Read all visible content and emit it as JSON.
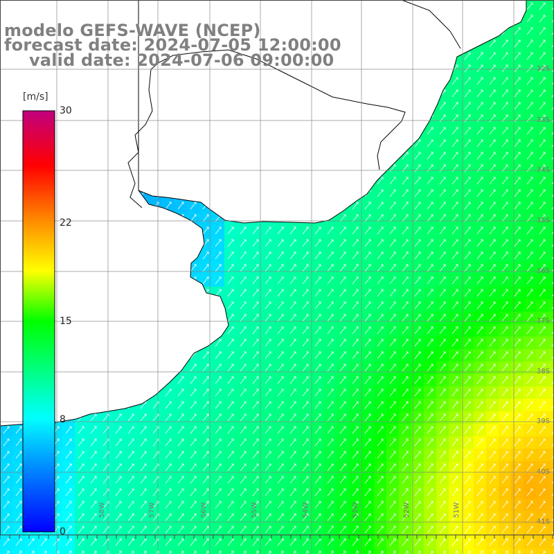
{
  "title": {
    "line1": "modelo GEFS-WAVE (NCEP)",
    "line2": "forecast date: 2024-07-05 12:00:00",
    "line3": "valid date: 2024-07-06 09:00:00"
  },
  "colorbar": {
    "unit": "[m/s]",
    "ticks": [
      {
        "label": "30",
        "value": 30
      },
      {
        "label": "22",
        "value": 22
      },
      {
        "label": "15",
        "value": 15
      },
      {
        "label": "8",
        "value": 8
      },
      {
        "label": "0",
        "value": 0
      }
    ],
    "min": 0,
    "max": 30,
    "colors": [
      "#0000ff",
      "#00a0ff",
      "#00ffff",
      "#00ff00",
      "#ffff00",
      "#ff8000",
      "#ff0000",
      "#c0007f"
    ]
  },
  "map": {
    "lat_labels": [
      "32S",
      "33S",
      "34S",
      "35S",
      "36S",
      "37S",
      "38S",
      "39S",
      "40S",
      "41S"
    ],
    "lon_labels": [
      "58W",
      "57W",
      "56W",
      "55W",
      "54W",
      "53W",
      "52W",
      "51W"
    ],
    "land_color": "#ffffff",
    "grid_color": "#888888",
    "arrow_color": "#ffffff"
  }
}
